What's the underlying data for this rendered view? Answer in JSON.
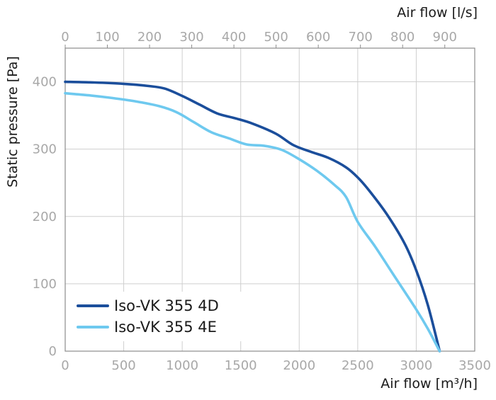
{
  "chart_data": {
    "type": "line",
    "xlabel": "Air flow [m³/h]",
    "x2label": "Air flow [l/s]",
    "ylabel": "Static pressure [Pa]",
    "xlim": [
      0,
      3500
    ],
    "ylim": [
      0,
      450
    ],
    "x_ticks": [
      "0",
      "500",
      "1000",
      "1500",
      "2000",
      "2500",
      "3000",
      "3500"
    ],
    "x2_ticks": [
      "0",
      "100",
      "200",
      "300",
      "400",
      "500",
      "600",
      "700",
      "800",
      "900"
    ],
    "y_ticks": [
      "0",
      "100",
      "200",
      "300",
      "400"
    ],
    "grid": true,
    "legend_position": "bottom-left",
    "series": [
      {
        "name": "Iso-VK 355 4D",
        "color": "#1b4e9b",
        "points": [
          [
            0,
            400
          ],
          [
            250,
            399
          ],
          [
            500,
            397
          ],
          [
            700,
            394
          ],
          [
            850,
            390
          ],
          [
            1000,
            379
          ],
          [
            1150,
            366
          ],
          [
            1300,
            353
          ],
          [
            1450,
            346
          ],
          [
            1600,
            338
          ],
          [
            1800,
            323
          ],
          [
            1950,
            306
          ],
          [
            2100,
            296
          ],
          [
            2250,
            287
          ],
          [
            2400,
            273
          ],
          [
            2500,
            258
          ],
          [
            2600,
            238
          ],
          [
            2750,
            203
          ],
          [
            2900,
            160
          ],
          [
            3000,
            120
          ],
          [
            3100,
            68
          ],
          [
            3200,
            0
          ]
        ]
      },
      {
        "name": "Iso-VK 355 4E",
        "color": "#6ec9ef",
        "points": [
          [
            0,
            383
          ],
          [
            200,
            380
          ],
          [
            400,
            376
          ],
          [
            600,
            371
          ],
          [
            800,
            364
          ],
          [
            950,
            355
          ],
          [
            1100,
            340
          ],
          [
            1250,
            325
          ],
          [
            1400,
            316
          ],
          [
            1550,
            307
          ],
          [
            1700,
            305
          ],
          [
            1850,
            299
          ],
          [
            2000,
            285
          ],
          [
            2150,
            268
          ],
          [
            2300,
            247
          ],
          [
            2400,
            229
          ],
          [
            2500,
            192
          ],
          [
            2650,
            155
          ],
          [
            2800,
            115
          ],
          [
            3000,
            62
          ],
          [
            3100,
            33
          ],
          [
            3200,
            0
          ]
        ]
      }
    ]
  }
}
